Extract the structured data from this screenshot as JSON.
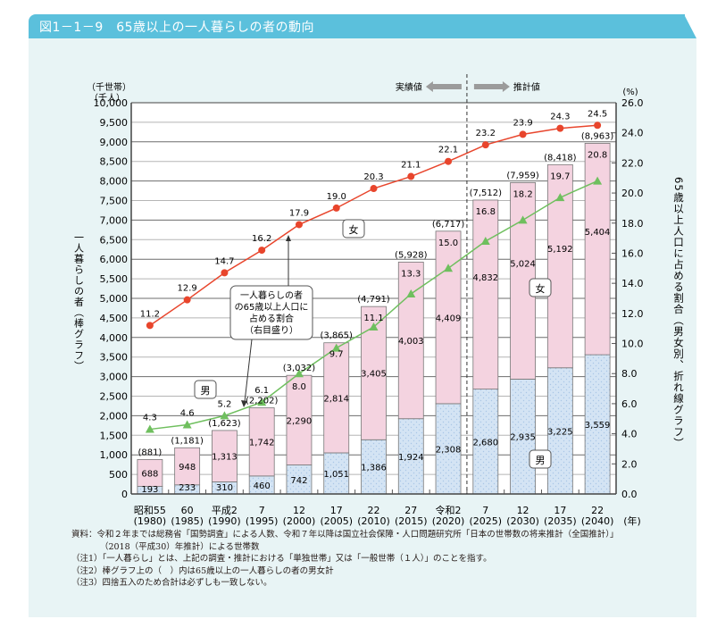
{
  "figure": {
    "title": "図1－1－9　65歳以上の一人暮らしの者の動向"
  },
  "colors": {
    "header": "#5bc0dc",
    "panel": "#e8f4f5",
    "female_bar": "#f4d3e0",
    "male_bar": "#d4e4f4",
    "female_line": "#e8452c",
    "male_line": "#6fbf5e"
  },
  "chart_data": {
    "type": "bar",
    "title": "65歳以上の一人暮らしの者の動向",
    "stacked": true,
    "categories": [
      "昭和55",
      "60",
      "平成2",
      "7",
      "12",
      "17",
      "22",
      "27",
      "令和2",
      "7",
      "12",
      "17",
      "22"
    ],
    "years": [
      "(1980)",
      "(1985)",
      "(1990)",
      "(1995)",
      "(2000)",
      "(2005)",
      "(2010)",
      "(2015)",
      "(2020)",
      "(2025)",
      "(2030)",
      "(2035)",
      "(2040)"
    ],
    "x_unit": "(年)",
    "series": [
      {
        "name": "男",
        "kind": "bar",
        "axis": "left",
        "values": [
          193,
          233,
          310,
          460,
          742,
          1051,
          1386,
          1924,
          2308,
          2680,
          2935,
          3225,
          3559
        ]
      },
      {
        "name": "女",
        "kind": "bar",
        "axis": "left",
        "values": [
          688,
          948,
          1313,
          1742,
          2290,
          2814,
          3405,
          4003,
          4409,
          4832,
          5024,
          5192,
          5404
        ]
      },
      {
        "name": "女（割合）",
        "kind": "line",
        "axis": "right",
        "values": [
          11.2,
          12.9,
          14.7,
          16.2,
          17.9,
          19.0,
          20.3,
          21.1,
          22.1,
          23.2,
          23.9,
          24.3,
          24.5
        ]
      },
      {
        "name": "男（割合）",
        "kind": "line",
        "axis": "right",
        "values": [
          4.3,
          4.6,
          5.2,
          6.1,
          8.0,
          9.7,
          11.1,
          13.3,
          15.0,
          16.8,
          18.2,
          19.7,
          20.8
        ]
      }
    ],
    "totals": [
      "(881)",
      "(1,181)",
      "(1,623)",
      "(2,202)",
      "(3,032)",
      "(3,865)",
      "(4,791)",
      "(5,928)",
      "(6,717)",
      "(7,512)",
      "(7,959)",
      "(8,418)",
      "(8,963)"
    ],
    "ylabel_left": "一人暮らしの者（棒グラフ）",
    "ylabel_left_units": [
      "（千世帯）",
      "（千人）"
    ],
    "ylim_left": [
      0,
      10000
    ],
    "yticks_left": [
      "0",
      "500",
      "1,000",
      "1,500",
      "2,000",
      "2,500",
      "3,000",
      "3,500",
      "4,000",
      "4,500",
      "5,000",
      "5,500",
      "6,000",
      "6,500",
      "7,000",
      "7,500",
      "8,000",
      "8,500",
      "9,000",
      "9,500",
      "10,000"
    ],
    "ylabel_right": "65歳以上人口に占める割合（男女別、折れ線グラフ）",
    "ylabel_right_unit": "(%)",
    "ylim_right": [
      0,
      26
    ],
    "yticks_right": [
      "0.0",
      "2.0",
      "4.0",
      "6.0",
      "8.0",
      "10.0",
      "12.0",
      "14.0",
      "16.0",
      "18.0",
      "20.0",
      "22.0",
      "24.0",
      "26.0"
    ],
    "grid": true,
    "split_index": 9,
    "legend_actual": "実績値",
    "legend_projected": "推計値",
    "annotations": {
      "female_tag": "女",
      "male_tag": "男",
      "callout": [
        "一人暮らしの者",
        "の65歳以上人口に",
        "占める割合",
        "（右目盛り）"
      ]
    }
  },
  "notes": {
    "source_1": "資料：令和２年までは総務省「国勢調査」による人数、令和７年以降は国立社会保障・人口問題研究所「日本の世帯数の将来推計（全国推計）」",
    "source_2": "（2018（平成30）年推計）による世帯数",
    "note_1": "（注1）「一人暮らし」とは、上記の調査・推計における「単独世帯」又は「一般世帯（１人）」のことを指す。",
    "note_2": "（注2）棒グラフ上の（　）内は65歳以上の一人暮らしの者の男女計",
    "note_3": "（注3）四捨五入のため合計は必ずしも一致しない。"
  }
}
